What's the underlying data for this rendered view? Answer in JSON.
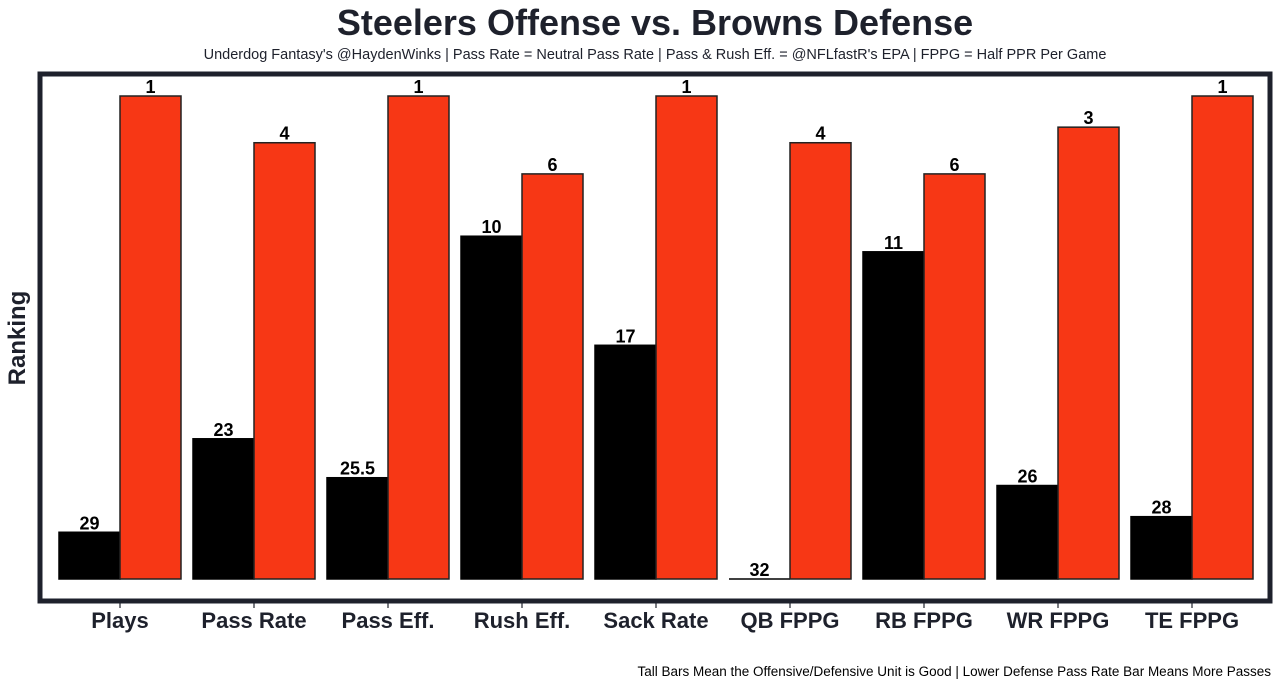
{
  "chart_data": {
    "type": "bar",
    "title": "Steelers Offense vs. Browns Defense",
    "subtitle": "Underdog Fantasy's @HaydenWinks | Pass Rate = Neutral Pass Rate | Pass & Rush Eff. = @NFLfastR's EPA | FPPG = Half PPR Per Game",
    "footnote": "Tall Bars Mean the Offensive/Defensive Unit is Good | Lower Defense Pass Rate Bar Means More Passes",
    "xlabel": "",
    "ylabel": "Ranking",
    "categories": [
      "Plays",
      "Pass Rate",
      "Pass Eff.",
      "Rush Eff.",
      "Sack Rate",
      "QB FPPG",
      "RB FPPG",
      "WR FPPG",
      "TE FPPG"
    ],
    "series": [
      {
        "name": "Steelers Offense",
        "color": "#000000",
        "values": [
          29,
          23,
          25.5,
          10,
          17,
          32,
          11,
          26,
          28
        ]
      },
      {
        "name": "Browns Defense",
        "color": "#f73715",
        "values": [
          1,
          4,
          1,
          6,
          1,
          4,
          6,
          3,
          1
        ]
      }
    ],
    "value_transform": "bar height = 32 - ranking (rank 1 tallest)",
    "ylim": [
      0,
      31
    ],
    "yticks_visible": false,
    "grid": false,
    "legend": "none",
    "frame_color": "#1e212c"
  }
}
